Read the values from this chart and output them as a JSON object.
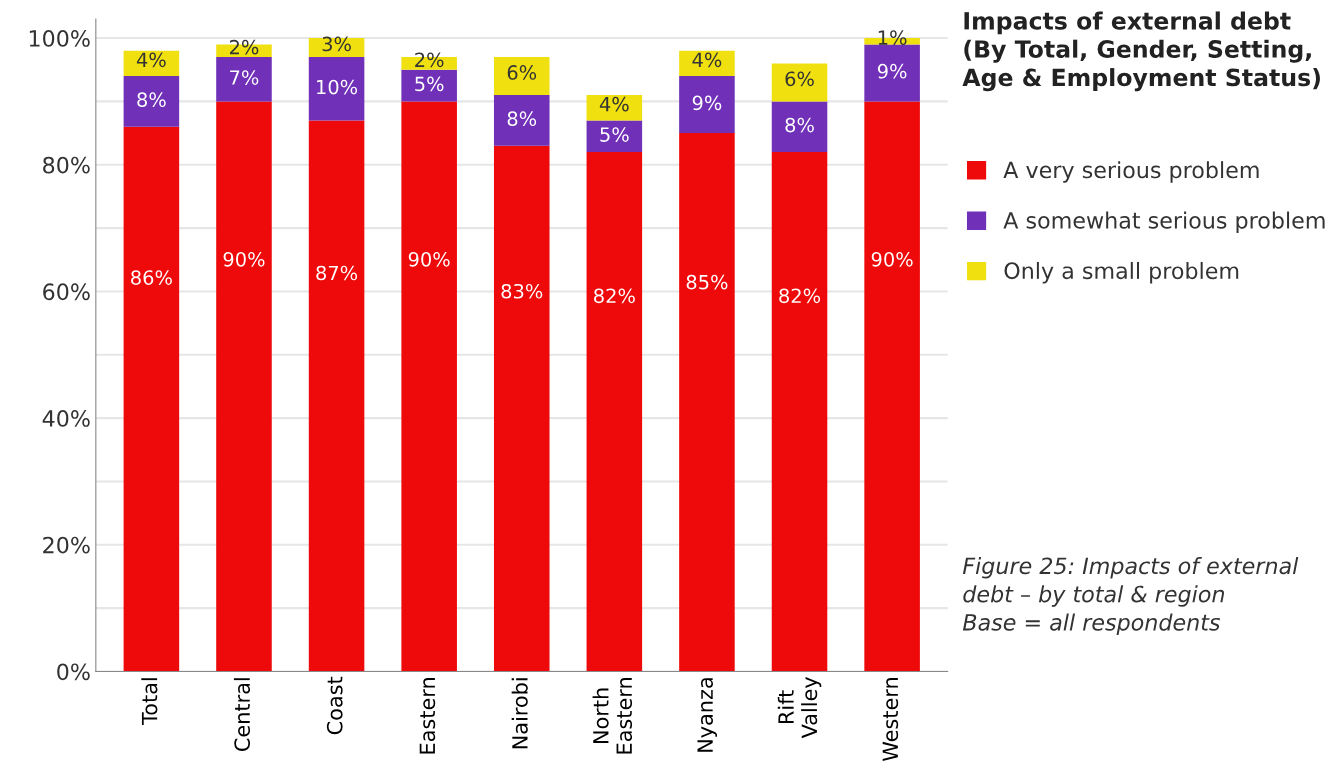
{
  "chart_data": {
    "type": "bar",
    "stacked": true,
    "title": "Impacts of external debt\n(By Total, Gender, Setting,\nAge & Employment Status)",
    "categories": [
      "Total",
      "Central",
      "Coast",
      "Eastern",
      "Nairobi",
      "North\nEastern",
      "Nyanza",
      "Rift\nValley",
      "Western"
    ],
    "series": [
      {
        "name": "A very serious problem",
        "color": "#ee0a0a",
        "values": [
          86,
          90,
          87,
          90,
          83,
          82,
          85,
          82,
          90
        ],
        "value_labels": [
          "86%",
          "90%",
          "87%",
          "90%",
          "83%",
          "82%",
          "85%",
          "82%",
          "90%"
        ]
      },
      {
        "name": "A somewhat serious problem",
        "color": "#7030b8",
        "values": [
          8,
          7,
          10,
          5,
          8,
          5,
          9,
          8,
          9
        ],
        "value_labels": [
          "8%",
          "7%",
          "10%",
          "5%",
          "8%",
          "5%",
          "9%",
          "8%",
          "9%"
        ]
      },
      {
        "name": "Only a small problem",
        "color": "#f0e010",
        "values": [
          4,
          2,
          3,
          2,
          6,
          4,
          4,
          6,
          1
        ],
        "value_labels": [
          "4%",
          "2%",
          "3%",
          "2%",
          "6%",
          "4%",
          "4%",
          "6%",
          "1%"
        ]
      }
    ],
    "ylim": [
      0,
      103
    ],
    "yticks": [
      {
        "value": 0,
        "label": "0%"
      },
      {
        "value": 10,
        "label": null
      },
      {
        "value": 20,
        "label": "20%"
      },
      {
        "value": 30,
        "label": null
      },
      {
        "value": 40,
        "label": "40%"
      },
      {
        "value": 50,
        "label": null
      },
      {
        "value": 60,
        "label": "60%"
      },
      {
        "value": 70,
        "label": null
      },
      {
        "value": 80,
        "label": "80%"
      },
      {
        "value": 90,
        "label": null
      },
      {
        "value": 100,
        "label": "100%"
      }
    ],
    "grid": "y",
    "legend": "right",
    "annotations": [
      "Figure 25: Impacts of external\ndebt – by total & region\nBase = all respondents"
    ]
  }
}
